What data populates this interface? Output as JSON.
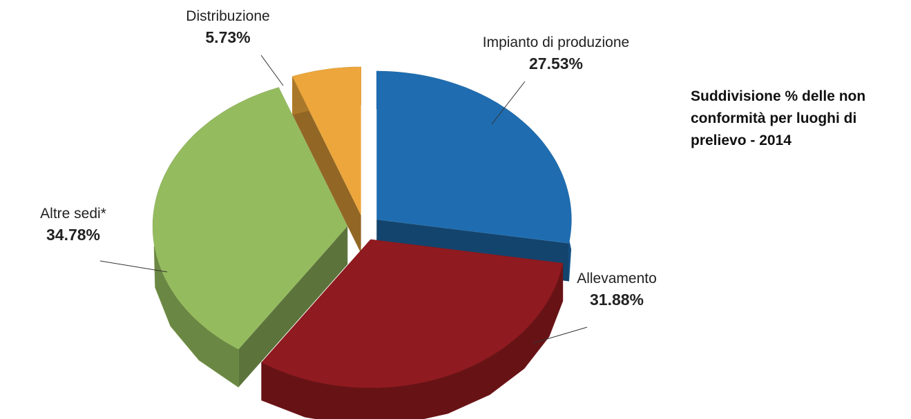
{
  "chart_data": {
    "type": "pie",
    "title": "Suddivisione % delle non conformità per luoghi di prelievo - 2014",
    "categories": [
      "Impianto di produzione",
      "Allevamento",
      "Altre sedi*",
      "Distribuzione"
    ],
    "values": [
      27.53,
      31.88,
      34.78,
      5.73
    ],
    "value_labels": [
      "27.53%",
      "31.88%",
      "34.78%",
      "5.73%"
    ],
    "colors": [
      "#1f6db0",
      "#8f1a1f",
      "#95bb5f",
      "#eca63b"
    ]
  }
}
